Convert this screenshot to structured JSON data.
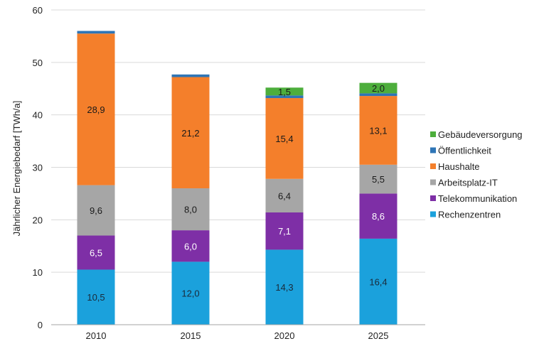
{
  "chart_data": {
    "type": "bar",
    "stacked": true,
    "title": "",
    "xlabel": "",
    "ylabel": "Jährlicher Energiebedarf [TWh/a]",
    "ylim": [
      0,
      60
    ],
    "yticks": [
      0,
      10,
      20,
      30,
      40,
      50,
      60
    ],
    "grid": true,
    "legend_position": "right",
    "categories": [
      "2010",
      "2015",
      "2020",
      "2025"
    ],
    "series": [
      {
        "name": "Rechenzentren",
        "color": "#1BA1DC",
        "values": [
          10.5,
          12.0,
          14.3,
          16.4
        ],
        "labels": [
          "10,5",
          "12,0",
          "14,3",
          "16,4"
        ],
        "label_color": "#1a2a3a"
      },
      {
        "name": "Telekommunikation",
        "color": "#7E2FA6",
        "values": [
          6.5,
          6.0,
          7.1,
          8.6
        ],
        "labels": [
          "6,5",
          "6,0",
          "7,1",
          "8,6"
        ],
        "label_color": "#ffffff"
      },
      {
        "name": "Arbeitsplatz-IT",
        "color": "#A6A6A6",
        "values": [
          9.6,
          8.0,
          6.4,
          5.5
        ],
        "labels": [
          "9,6",
          "8,0",
          "6,4",
          "5,5"
        ],
        "label_color": "#1a1a1a"
      },
      {
        "name": "Haushalte",
        "color": "#F47F2B",
        "values": [
          28.9,
          21.2,
          15.4,
          13.1
        ],
        "labels": [
          "28,9",
          "21,2",
          "15,4",
          "13,1"
        ],
        "label_color": "#1a1a1a"
      },
      {
        "name": "Öffentlichkeit",
        "color": "#2E75B6",
        "values": [
          0.5,
          0.5,
          0.5,
          0.5
        ],
        "labels": [
          "",
          "",
          "",
          ""
        ],
        "label_color": "#1a1a1a"
      },
      {
        "name": "Gebäudeversorgung",
        "color": "#4DAE3C",
        "values": [
          0,
          0,
          1.5,
          2.0
        ],
        "labels": [
          "",
          "",
          "1,5",
          "2,0"
        ],
        "label_color": "#1a1a1a"
      }
    ]
  }
}
